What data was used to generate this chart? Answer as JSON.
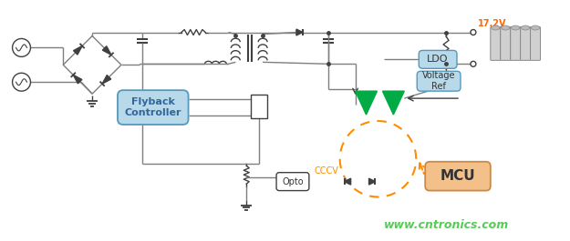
{
  "bg_color": "#ffffff",
  "line_color": "#7f7f7f",
  "dark_line": "#404040",
  "green_fill": "#00aa44",
  "blue_box_fill": "#b8d9ea",
  "blue_box_edge": "#5599bb",
  "orange_box_fill": "#f4c08a",
  "orange_box_edge": "#cc8844",
  "orange_color": "#ff8c00",
  "watermark_color": "#55cc55",
  "watermark": "www.cntronics.com",
  "watermark_fontsize": 9,
  "label_17v2": "17.2V",
  "label_flyback": "Flyback\nController",
  "label_ldo": "LDO",
  "label_vref": "Voltage\nRef",
  "label_mcu": "MCU",
  "label_opto": "Opto",
  "label_cccv": "CCCV"
}
